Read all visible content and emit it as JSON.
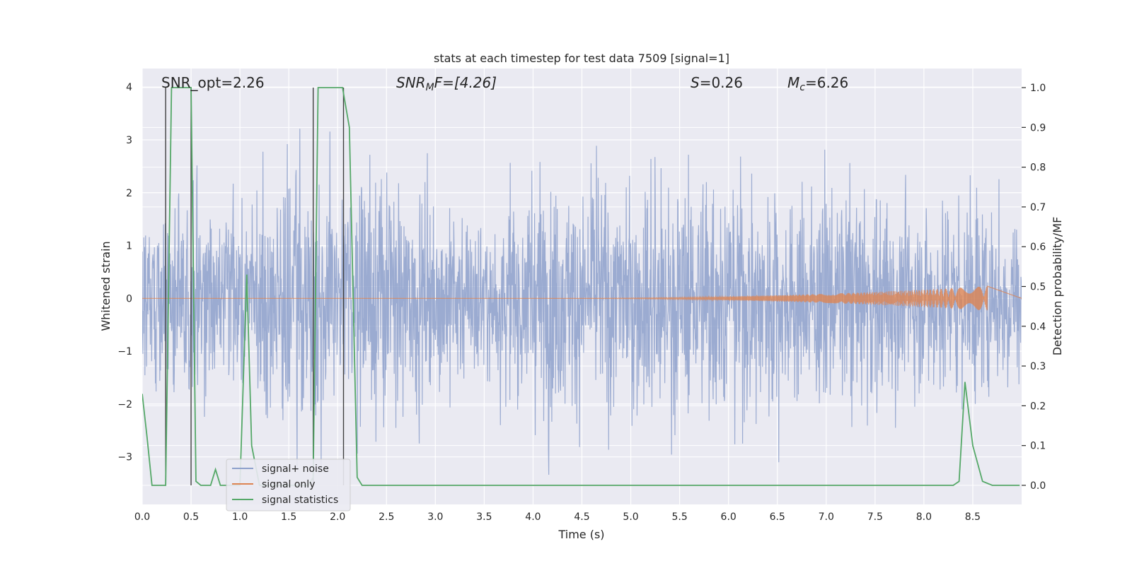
{
  "chart_data": {
    "type": "line",
    "title": "stats at each timestep for test data 7509 [signal=1]",
    "xlabel": "Time (s)",
    "ylabel": "Whitened strain",
    "ylabel_right": "Detection probability/MF",
    "xlim": [
      0.0,
      9.0
    ],
    "ylim": [
      -3.9,
      4.35
    ],
    "ylim_right": [
      -0.048,
      1.048
    ],
    "x_ticks": [
      0.0,
      0.5,
      1.0,
      1.5,
      2.0,
      2.5,
      3.0,
      3.5,
      4.0,
      4.5,
      5.0,
      5.5,
      6.0,
      6.5,
      7.0,
      7.5,
      8.0,
      8.5
    ],
    "x_tick_labels": [
      "0.0",
      "0.5",
      "1.0",
      "1.5",
      "2.0",
      "2.5",
      "3.0",
      "3.5",
      "4.0",
      "4.5",
      "5.0",
      "5.5",
      "6.0",
      "6.5",
      "7.0",
      "7.5",
      "8.0",
      "8.5"
    ],
    "y_ticks": [
      4,
      3,
      2,
      1,
      0,
      -1,
      -2,
      -3
    ],
    "y_tick_labels": [
      "4",
      "3",
      "2",
      "1",
      "0",
      "−1",
      "−2",
      "−3"
    ],
    "y_right_ticks": [
      1.0,
      0.9,
      0.8,
      0.7,
      0.6,
      0.5,
      0.4,
      0.3,
      0.2,
      0.1,
      0.0
    ],
    "y_right_tick_labels": [
      "1.0",
      "0.9",
      "0.8",
      "0.7",
      "0.6",
      "0.5",
      "0.4",
      "0.3",
      "0.2",
      "0.1",
      "0.0"
    ],
    "annotations": {
      "snr_opt": "SNR_opt=2.26",
      "snr_mf_sym": "SNR",
      "snr_mf_sub": "M",
      "snr_mf_tail": "F=[4.26]",
      "s_sym": "S",
      "s_val": "=0.26",
      "mc_sym": "M",
      "mc_sub": "c",
      "mc_val": "=6.26"
    },
    "vertical_markers": [
      0.24,
      0.5,
      1.75,
      2.06
    ],
    "series": [
      {
        "name": "signal+ noise",
        "color": "#8da0cb",
        "axis": "left",
        "description": "noise amplitude envelope",
        "envelope_x": [
          0.0,
          0.5,
          1.0,
          1.5,
          2.0,
          2.5,
          3.0,
          3.5,
          4.0,
          4.5,
          5.0,
          5.5,
          6.0,
          6.5,
          7.0,
          7.5,
          8.0,
          8.5,
          9.0
        ],
        "envelope_amp": [
          2.5,
          2.6,
          2.6,
          3.5,
          3.1,
          3.5,
          2.6,
          2.5,
          3.4,
          3.1,
          3.5,
          3.4,
          3.3,
          3.3,
          2.8,
          3.2,
          2.7,
          3.1,
          2.4
        ],
        "seed": 7509
      },
      {
        "name": "signal only",
        "color": "#dd8452",
        "axis": "left",
        "description": "chirp growing toward merger at ~8.65 s",
        "chirp_start": 4.0,
        "chirp_end": 8.65,
        "chirp_peak_amp": 0.23
      },
      {
        "name": "signal statistics",
        "color": "#55a868",
        "axis": "right",
        "x": [
          0.0,
          0.05,
          0.1,
          0.24,
          0.3,
          0.5,
          0.55,
          0.6,
          0.65,
          0.7,
          0.75,
          0.8,
          0.9,
          1.0,
          1.07,
          1.12,
          1.2,
          1.3,
          1.4,
          1.55,
          1.6,
          1.7,
          1.75,
          1.8,
          1.85,
          1.95,
          2.05,
          2.12,
          2.2,
          2.25,
          2.5,
          3.0,
          4.0,
          5.0,
          6.0,
          7.0,
          8.0,
          8.3,
          8.36,
          8.42,
          8.5,
          8.6,
          8.7,
          8.9,
          8.98
        ],
        "values": [
          0.23,
          0.12,
          0.0,
          0.0,
          1.0,
          1.0,
          0.01,
          0.0,
          0.0,
          0.0,
          0.04,
          0.0,
          0.0,
          0.0,
          0.53,
          0.1,
          0.0,
          0.0,
          0.0,
          0.0,
          0.0,
          0.0,
          0.02,
          1.0,
          1.0,
          1.0,
          1.0,
          0.9,
          0.02,
          0.0,
          0.0,
          0.0,
          0.0,
          0.0,
          0.0,
          0.0,
          0.0,
          0.0,
          0.01,
          0.26,
          0.1,
          0.01,
          0.0,
          0.0,
          0.0
        ]
      }
    ],
    "legend": {
      "position": "lower-left",
      "entries": [
        {
          "label": "signal+ noise",
          "color": "#8da0cb"
        },
        {
          "label": "signal only",
          "color": "#dd8452"
        },
        {
          "label": "signal statistics",
          "color": "#55a868"
        }
      ]
    },
    "colors": {
      "background": "#eaeaf2",
      "grid": "#ffffff",
      "marker": "#404040"
    }
  }
}
